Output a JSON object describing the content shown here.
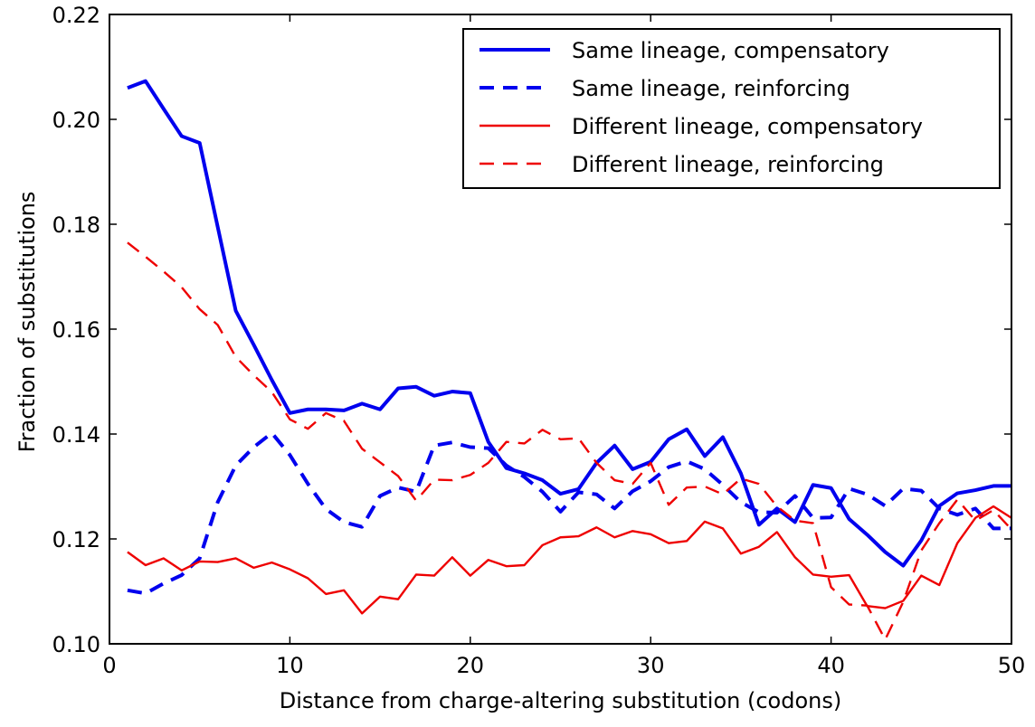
{
  "chart_data": {
    "type": "line",
    "xlabel": "Distance from charge-altering substitution (codons)",
    "ylabel": "Fraction of substitutions",
    "xlim": [
      0,
      50
    ],
    "ylim": [
      0.1,
      0.22
    ],
    "xticks": [
      0,
      10,
      20,
      30,
      40,
      50
    ],
    "xtick_labels": [
      "0",
      "10",
      "20",
      "30",
      "40",
      "50"
    ],
    "yticks": [
      0.1,
      0.12,
      0.14,
      0.16,
      0.18,
      0.2,
      0.22
    ],
    "ytick_labels": [
      "0.10",
      "0.12",
      "0.14",
      "0.16",
      "0.18",
      "0.20",
      "0.22"
    ],
    "grid": false,
    "legend_position": "top-right",
    "x": [
      1,
      2,
      3,
      4,
      5,
      6,
      7,
      8,
      9,
      10,
      11,
      12,
      13,
      14,
      15,
      16,
      17,
      18,
      19,
      20,
      21,
      22,
      23,
      24,
      25,
      26,
      27,
      28,
      29,
      30,
      31,
      32,
      33,
      34,
      35,
      36,
      37,
      38,
      39,
      40,
      41,
      42,
      43,
      44,
      45,
      46,
      47,
      48,
      49,
      50
    ],
    "series": [
      {
        "name": "Same lineage, compensatory",
        "color": "#0000ee",
        "style": "solid",
        "width": "thick",
        "values": [
          0.206,
          0.2073,
          0.202,
          0.1968,
          0.1955,
          0.1795,
          0.1635,
          0.157,
          0.1503,
          0.144,
          0.1447,
          0.1447,
          0.1445,
          0.1458,
          0.1447,
          0.1487,
          0.149,
          0.1473,
          0.1481,
          0.1478,
          0.1385,
          0.1335,
          0.1325,
          0.1312,
          0.1286,
          0.1295,
          0.1345,
          0.1378,
          0.1333,
          0.1347,
          0.139,
          0.1409,
          0.1358,
          0.1394,
          0.1325,
          0.1227,
          0.1258,
          0.1232,
          0.1303,
          0.1297,
          0.1238,
          0.1208,
          0.1175,
          0.1149,
          0.1197,
          0.1263,
          0.1287,
          0.1293,
          0.1301,
          0.1301
        ]
      },
      {
        "name": "Same lineage, reinforcing",
        "color": "#0000ee",
        "style": "dashed",
        "width": "thick",
        "values": [
          0.1102,
          0.1096,
          0.1115,
          0.1131,
          0.1163,
          0.127,
          0.134,
          0.1375,
          0.1402,
          0.136,
          0.1305,
          0.1257,
          0.1232,
          0.1223,
          0.1282,
          0.1298,
          0.129,
          0.1378,
          0.1384,
          0.1375,
          0.1373,
          0.134,
          0.1318,
          0.129,
          0.1252,
          0.1289,
          0.1285,
          0.1258,
          0.1291,
          0.131,
          0.1337,
          0.1348,
          0.1333,
          0.1303,
          0.127,
          0.1251,
          0.125,
          0.1282,
          0.124,
          0.1241,
          0.1296,
          0.1285,
          0.1263,
          0.1296,
          0.1292,
          0.1258,
          0.1246,
          0.1258,
          0.122,
          0.122
        ]
      },
      {
        "name": "Different lineage, compensatory",
        "color": "#ee0000",
        "style": "solid",
        "width": "thin",
        "values": [
          0.1175,
          0.115,
          0.1163,
          0.114,
          0.1157,
          0.1156,
          0.1163,
          0.1145,
          0.1155,
          0.1142,
          0.1125,
          0.1095,
          0.1102,
          0.1058,
          0.109,
          0.1085,
          0.1132,
          0.113,
          0.1165,
          0.113,
          0.116,
          0.1148,
          0.115,
          0.1188,
          0.1203,
          0.1205,
          0.1222,
          0.1203,
          0.1215,
          0.1209,
          0.1192,
          0.1196,
          0.1233,
          0.122,
          0.1172,
          0.1185,
          0.1213,
          0.1165,
          0.1132,
          0.1128,
          0.1131,
          0.1072,
          0.1068,
          0.1082,
          0.113,
          0.1112,
          0.1192,
          0.124,
          0.1262,
          0.124
        ]
      },
      {
        "name": "Different lineage, reinforcing",
        "color": "#ee0000",
        "style": "dashed",
        "width": "thin",
        "values": [
          0.1765,
          0.1738,
          0.171,
          0.168,
          0.1638,
          0.1608,
          0.1547,
          0.1512,
          0.148,
          0.1428,
          0.141,
          0.144,
          0.1425,
          0.1372,
          0.1346,
          0.132,
          0.1273,
          0.1313,
          0.1312,
          0.1322,
          0.1345,
          0.1385,
          0.1382,
          0.1408,
          0.139,
          0.1392,
          0.1345,
          0.1312,
          0.1305,
          0.1345,
          0.1265,
          0.1298,
          0.13,
          0.1285,
          0.1315,
          0.1305,
          0.1262,
          0.1235,
          0.123,
          0.1108,
          0.1075,
          0.1073,
          0.1008,
          0.108,
          0.1178,
          0.123,
          0.1275,
          0.1235,
          0.1255,
          0.1218
        ]
      }
    ]
  }
}
